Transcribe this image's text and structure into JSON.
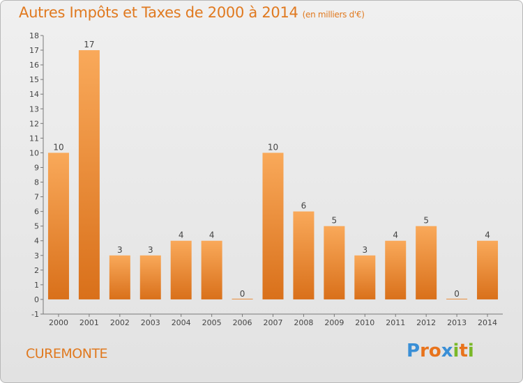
{
  "title": "Autres Impôts et Taxes de 2000 à 2014",
  "subtitle": "(en milliers d'€)",
  "commune": "CUREMONTE",
  "logo_letters": [
    "P",
    "r",
    "o",
    "x",
    "i",
    "t",
    "i"
  ],
  "logo_colors": [
    "#3a8fd6",
    "#e8731c",
    "#e8731c",
    "#3a8fd6",
    "#7ab829",
    "#e8731c",
    "#7ab829"
  ],
  "colors": {
    "accent": "#e0791f",
    "bar_light": "#f9a95a",
    "bar_dark": "#d9701a"
  },
  "chart_data": {
    "type": "bar",
    "categories": [
      "2000",
      "2001",
      "2002",
      "2003",
      "2004",
      "2005",
      "2006",
      "2007",
      "2008",
      "2009",
      "2010",
      "2011",
      "2012",
      "2013",
      "2014"
    ],
    "values": [
      10,
      17,
      3,
      3,
      4,
      4,
      0,
      10,
      6,
      5,
      3,
      4,
      5,
      0,
      4
    ],
    "ylim": [
      -1,
      18
    ],
    "yticks": [
      -1,
      0,
      1,
      2,
      3,
      4,
      5,
      6,
      7,
      8,
      9,
      10,
      11,
      12,
      13,
      14,
      15,
      16,
      17,
      18
    ],
    "grid": false,
    "data_labels": true
  }
}
